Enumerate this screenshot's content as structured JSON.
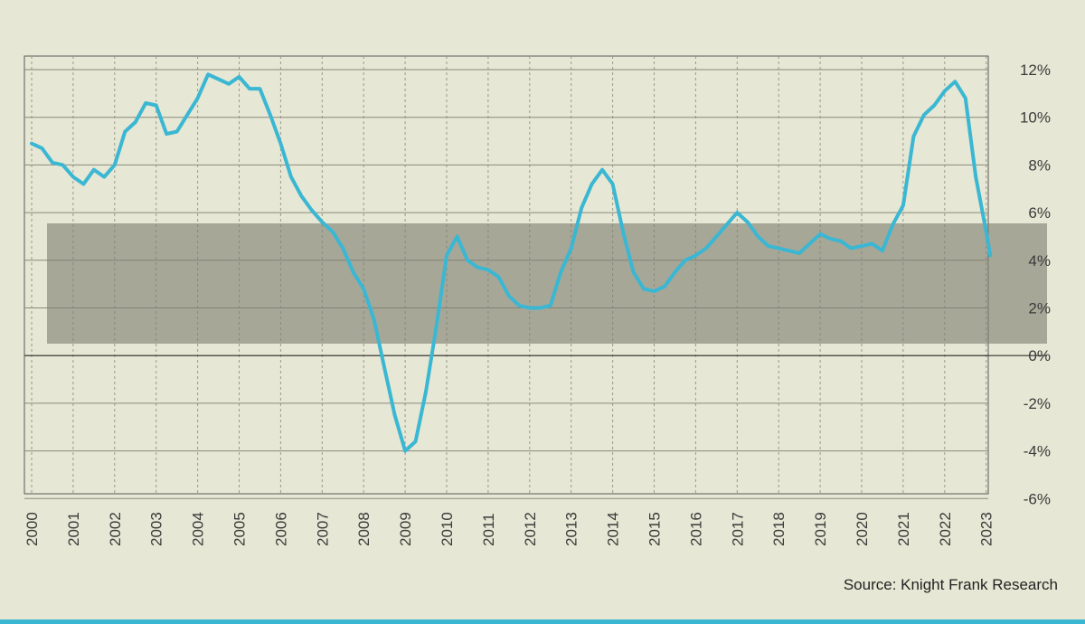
{
  "chart_data": {
    "type": "line",
    "x_ticks": [
      "2000",
      "2001",
      "2002",
      "2003",
      "2004",
      "2005",
      "2006",
      "2007",
      "2008",
      "2009",
      "2010",
      "2011",
      "2012",
      "2013",
      "2014",
      "2015",
      "2016",
      "2017",
      "2018",
      "2019",
      "2020",
      "2021",
      "2022",
      "2023"
    ],
    "y_ticks": [
      "12%",
      "10%",
      "8%",
      "6%",
      "4%",
      "2%",
      "0%",
      "-2%",
      "-4%",
      "-6%"
    ],
    "ylim": [
      -6,
      12
    ],
    "xlim": [
      2000,
      2023
    ],
    "grid": true,
    "series": [
      {
        "color": "#3ab7d3",
        "points": [
          [
            2000.0,
            8.9
          ],
          [
            2000.25,
            8.7
          ],
          [
            2000.5,
            8.1
          ],
          [
            2000.75,
            8.0
          ],
          [
            2001.0,
            7.5
          ],
          [
            2001.25,
            7.2
          ],
          [
            2001.5,
            7.8
          ],
          [
            2001.75,
            7.5
          ],
          [
            2002.0,
            8.0
          ],
          [
            2002.25,
            9.4
          ],
          [
            2002.5,
            9.8
          ],
          [
            2002.75,
            10.6
          ],
          [
            2003.0,
            10.5
          ],
          [
            2003.25,
            9.3
          ],
          [
            2003.5,
            9.4
          ],
          [
            2003.75,
            10.1
          ],
          [
            2004.0,
            10.8
          ],
          [
            2004.25,
            11.8
          ],
          [
            2004.5,
            11.6
          ],
          [
            2004.75,
            11.4
          ],
          [
            2005.0,
            11.7
          ],
          [
            2005.25,
            11.2
          ],
          [
            2005.5,
            11.2
          ],
          [
            2005.75,
            10.1
          ],
          [
            2006.0,
            8.9
          ],
          [
            2006.25,
            7.5
          ],
          [
            2006.5,
            6.7
          ],
          [
            2006.75,
            6.1
          ],
          [
            2007.0,
            5.6
          ],
          [
            2007.25,
            5.2
          ],
          [
            2007.5,
            4.5
          ],
          [
            2007.75,
            3.5
          ],
          [
            2008.0,
            2.8
          ],
          [
            2008.25,
            1.5
          ],
          [
            2008.5,
            -0.5
          ],
          [
            2008.75,
            -2.5
          ],
          [
            2009.0,
            -4.0
          ],
          [
            2009.25,
            -3.6
          ],
          [
            2009.5,
            -1.5
          ],
          [
            2009.75,
            1.2
          ],
          [
            2010.0,
            4.2
          ],
          [
            2010.25,
            5.0
          ],
          [
            2010.5,
            4.0
          ],
          [
            2010.75,
            3.7
          ],
          [
            2011.0,
            3.6
          ],
          [
            2011.25,
            3.3
          ],
          [
            2011.5,
            2.5
          ],
          [
            2011.75,
            2.1
          ],
          [
            2012.0,
            2.0
          ],
          [
            2012.25,
            2.0
          ],
          [
            2012.5,
            2.1
          ],
          [
            2012.75,
            3.5
          ],
          [
            2013.0,
            4.5
          ],
          [
            2013.25,
            6.2
          ],
          [
            2013.5,
            7.2
          ],
          [
            2013.75,
            7.8
          ],
          [
            2014.0,
            7.2
          ],
          [
            2014.25,
            5.2
          ],
          [
            2014.5,
            3.5
          ],
          [
            2014.75,
            2.8
          ],
          [
            2015.0,
            2.7
          ],
          [
            2015.25,
            2.9
          ],
          [
            2015.5,
            3.5
          ],
          [
            2015.75,
            4.0
          ],
          [
            2016.0,
            4.2
          ],
          [
            2016.25,
            4.5
          ],
          [
            2016.5,
            5.0
          ],
          [
            2016.75,
            5.5
          ],
          [
            2017.0,
            6.0
          ],
          [
            2017.25,
            5.6
          ],
          [
            2017.5,
            5.0
          ],
          [
            2017.75,
            4.6
          ],
          [
            2018.0,
            4.5
          ],
          [
            2018.25,
            4.4
          ],
          [
            2018.5,
            4.3
          ],
          [
            2018.75,
            4.7
          ],
          [
            2019.0,
            5.1
          ],
          [
            2019.25,
            4.9
          ],
          [
            2019.5,
            4.8
          ],
          [
            2019.75,
            4.5
          ],
          [
            2020.0,
            4.6
          ],
          [
            2020.25,
            4.7
          ],
          [
            2020.5,
            4.4
          ],
          [
            2020.75,
            5.5
          ],
          [
            2021.0,
            6.3
          ],
          [
            2021.25,
            9.2
          ],
          [
            2021.5,
            10.1
          ],
          [
            2021.75,
            10.5
          ],
          [
            2022.0,
            11.1
          ],
          [
            2022.25,
            11.5
          ],
          [
            2022.5,
            10.8
          ],
          [
            2022.75,
            7.5
          ],
          [
            2023.0,
            5.2
          ],
          [
            2023.1,
            4.2
          ]
        ]
      }
    ],
    "annotations": [
      "Source: Knight Frank Research"
    ]
  }
}
